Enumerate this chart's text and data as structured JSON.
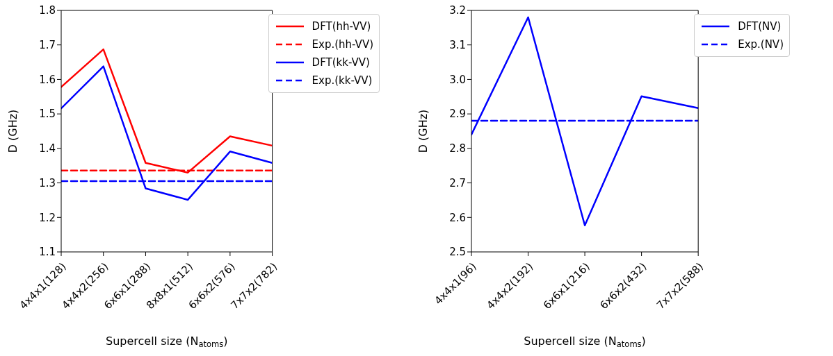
{
  "chart_data": [
    {
      "type": "line",
      "categories": [
        "4x4x1(128)",
        "4x4x2(256)",
        "6x6x1(288)",
        "8x8x1(512)",
        "6x6x2(576)",
        "7x7x2(782)"
      ],
      "xlabel": "Supercell size (N$_{atoms}$)",
      "ylabel": "D (GHz)",
      "ylim": [
        1.1,
        1.8
      ],
      "yticks": [
        1.1,
        1.2,
        1.3,
        1.4,
        1.5,
        1.6,
        1.7,
        1.8
      ],
      "legend": "top right",
      "marker": "none",
      "grid": false,
      "series": [
        {
          "name": "DFT(hh-VV)",
          "color": "#ff0000",
          "line_style": "solid",
          "values": [
            1.578,
            1.687,
            1.358,
            1.33,
            1.435,
            1.408
          ]
        },
        {
          "name": "Exp.(hh-VV)",
          "color": "#ff0000",
          "line_style": "dashed",
          "values": [
            1.336,
            1.336,
            1.336,
            1.336,
            1.336,
            1.336
          ]
        },
        {
          "name": "DFT(kk-VV)",
          "color": "#0000ff",
          "line_style": "solid",
          "values": [
            1.516,
            1.638,
            1.284,
            1.251,
            1.391,
            1.358
          ]
        },
        {
          "name": "Exp.(kk-VV)",
          "color": "#0000ff",
          "line_style": "dashed",
          "values": [
            1.305,
            1.305,
            1.305,
            1.305,
            1.305,
            1.305
          ]
        }
      ]
    },
    {
      "type": "line",
      "categories": [
        "4x4x1(96)",
        "4x4x2(192)",
        "6x6x1(216)",
        "6x6x2(432)",
        "7x7x2(588)"
      ],
      "xlabel": "Supercell size (N$_{atoms}$)",
      "ylabel": "D (GHz)",
      "ylim": [
        2.5,
        3.2
      ],
      "yticks": [
        2.5,
        2.6,
        2.7,
        2.8,
        2.9,
        {
          "value": 3,
          "label": "3.0"
        },
        3.1,
        3.2
      ],
      "legend": "top right",
      "marker": "none",
      "grid": false,
      "series": [
        {
          "name": "DFT(NV)",
          "color": "#0000ff",
          "line_style": "solid",
          "values": [
            2.84,
            3.18,
            2.577,
            2.951,
            2.917
          ]
        },
        {
          "name": "Exp.(NV)",
          "color": "#0000ff",
          "line_style": "dashed",
          "values": [
            2.88,
            2.88,
            2.88,
            2.88,
            2.88
          ]
        }
      ]
    }
  ]
}
